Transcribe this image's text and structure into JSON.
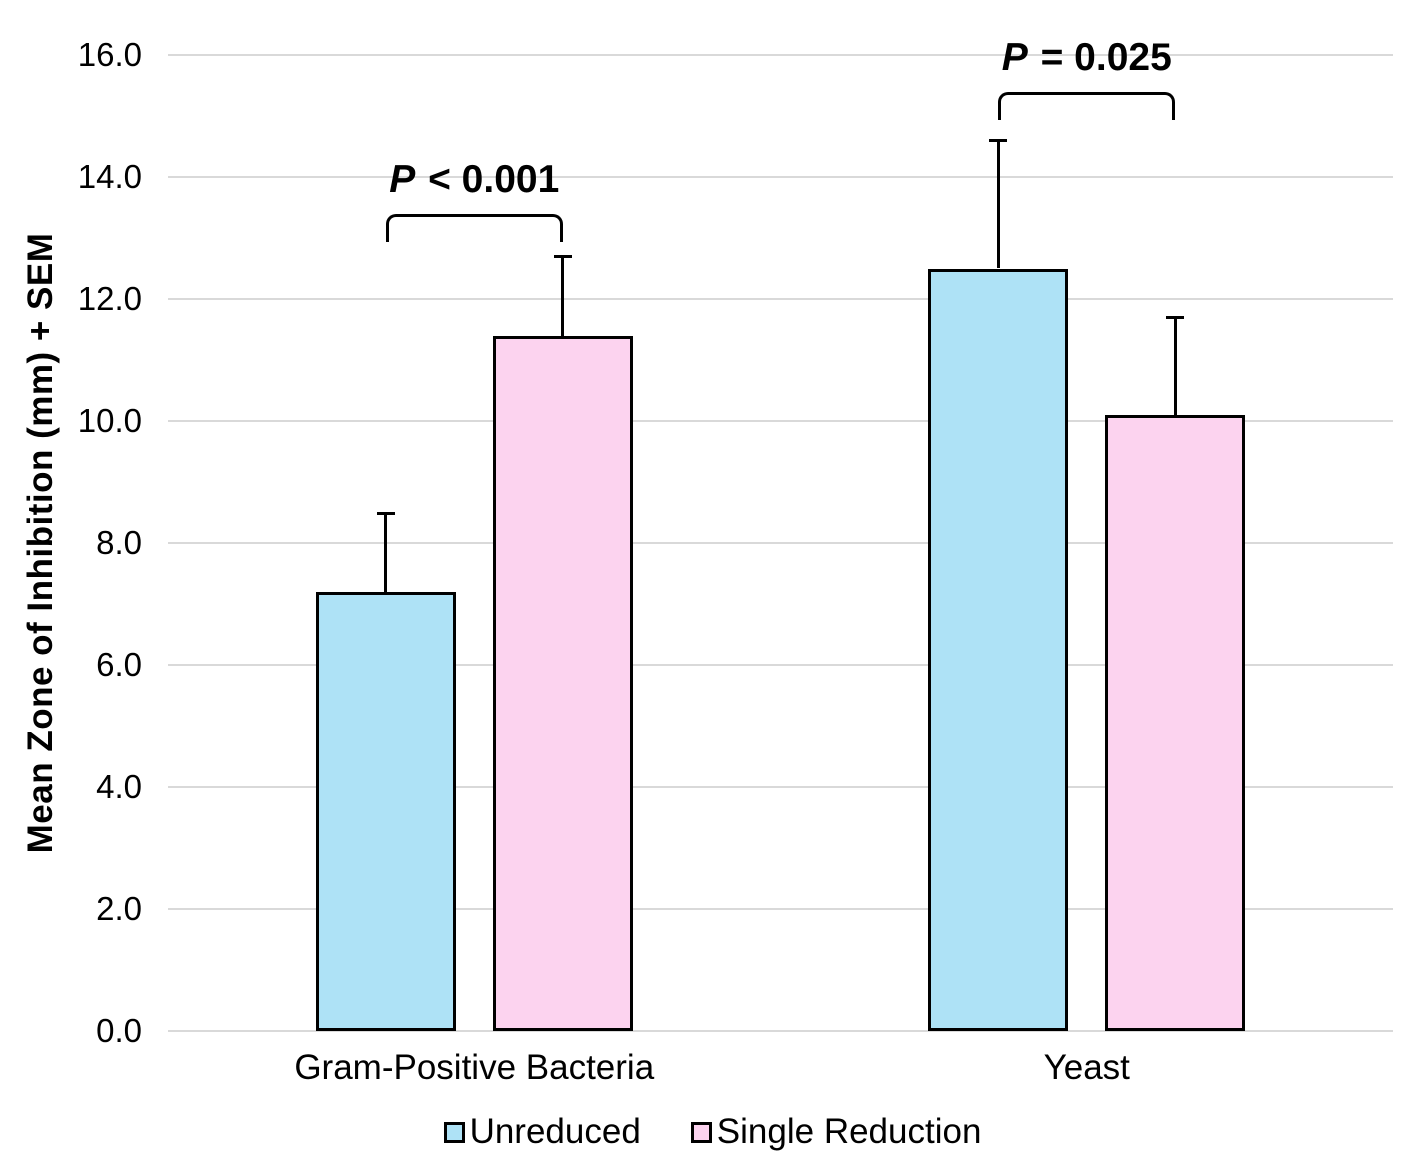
{
  "chart_data": {
    "type": "bar",
    "title": "",
    "ylabel": "Mean Zone of Inhibition (mm) + SEM",
    "xlabel": "",
    "ylim": [
      0,
      16
    ],
    "ytick_step": 2,
    "ytick_labels": [
      "0.0",
      "2.0",
      "4.0",
      "6.0",
      "8.0",
      "10.0",
      "12.0",
      "14.0",
      "16.0"
    ],
    "grid": "horizontal-only",
    "gridline_color": "#D9D9D9",
    "bar_border_color": "#000000",
    "error_bar_color": "#000000",
    "legend_position": "bottom-center",
    "categories": [
      "Gram-Positive Bacteria",
      "Yeast"
    ],
    "series": [
      {
        "name": "Unreduced",
        "color": "#AEE2F6",
        "values": [
          7.2,
          12.5
        ],
        "sem": [
          1.3,
          2.1
        ]
      },
      {
        "name": "Single Reduction",
        "color": "#FCD3EF",
        "values": [
          11.4,
          10.1
        ],
        "sem": [
          1.3,
          1.6
        ]
      }
    ],
    "significance_annotations": [
      {
        "category": "Gram-Positive Bacteria",
        "label": "P < 0.001",
        "bracket_top_value": 13.4
      },
      {
        "category": "Yeast",
        "label": "P = 0.025",
        "bracket_top_value": 15.4
      }
    ]
  }
}
